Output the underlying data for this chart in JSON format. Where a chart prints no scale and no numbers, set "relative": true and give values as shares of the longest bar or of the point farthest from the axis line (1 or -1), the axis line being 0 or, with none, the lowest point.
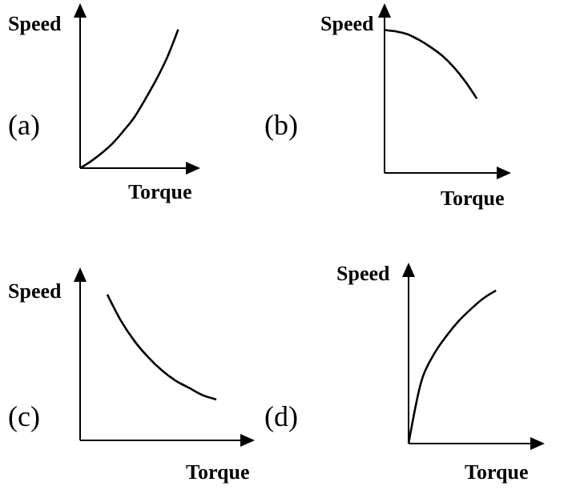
{
  "chart_data": [
    {
      "type": "line",
      "title": "(a)",
      "xlabel": "Torque",
      "ylabel": "Speed",
      "relative": true,
      "marker": "none",
      "categories": [
        null,
        null,
        null,
        null,
        null,
        null,
        null,
        null,
        null,
        null,
        null
      ],
      "series": [
        {
          "color": "#000000",
          "values": [
            0,
            0.05,
            0.11,
            0.18,
            0.27,
            0.37,
            0.5,
            0.64,
            0.8,
            1,
            null
          ]
        }
      ]
    },
    {
      "type": "line",
      "title": "(b)",
      "xlabel": "Torque",
      "ylabel": "Speed",
      "relative": true,
      "marker": "none",
      "categories": [
        null,
        null,
        null,
        null,
        null,
        null,
        null,
        null,
        null,
        null,
        null
      ],
      "series": [
        {
          "color": "#000000",
          "values": [
            1,
            0.99,
            0.97,
            0.93,
            0.88,
            0.82,
            0.74,
            0.64,
            0.52,
            null,
            null
          ]
        }
      ]
    },
    {
      "type": "line",
      "title": "(c)",
      "xlabel": "Torque",
      "ylabel": "Speed",
      "relative": true,
      "marker": "none",
      "categories": [
        null,
        null,
        null,
        null,
        null,
        null,
        null,
        null,
        null,
        null,
        null,
        null,
        null
      ],
      "series": [
        {
          "color": "#000000",
          "values": [
            null,
            null,
            1,
            0.82,
            0.68,
            0.57,
            0.48,
            0.41,
            0.36,
            0.31,
            0.28,
            null,
            null
          ]
        }
      ]
    },
    {
      "type": "line",
      "title": "(d)",
      "xlabel": "Torque",
      "ylabel": "Speed",
      "relative": true,
      "marker": "none",
      "categories": [
        null,
        null,
        null,
        null,
        null,
        null,
        null,
        null,
        null,
        null,
        null
      ],
      "series": [
        {
          "color": "#000000",
          "values": [
            0,
            0.4,
            0.58,
            0.7,
            0.8,
            0.88,
            0.95,
            1,
            null,
            null,
            null
          ]
        }
      ]
    }
  ]
}
